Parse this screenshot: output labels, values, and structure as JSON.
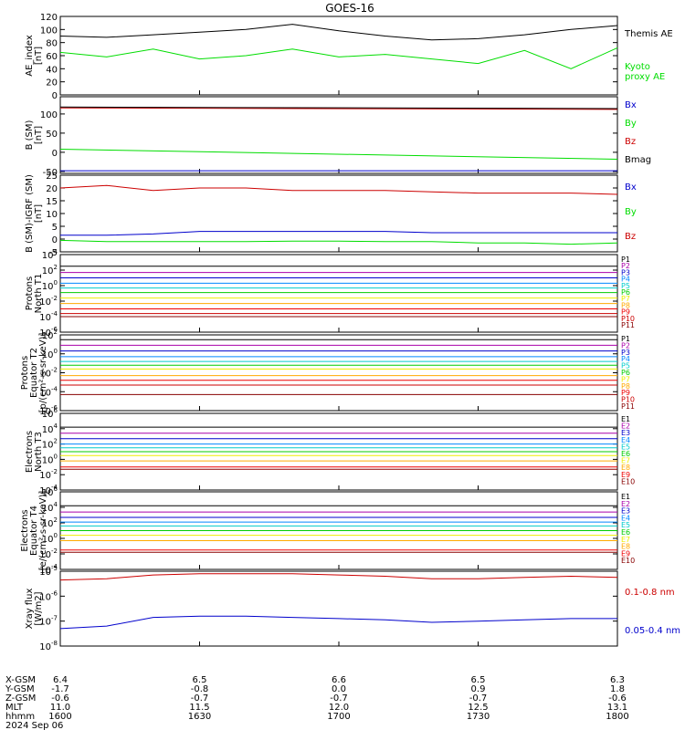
{
  "title": "GOES-16",
  "chart_data": [
    {
      "type": "line",
      "ylabel": [
        "AE_index",
        "[nT]"
      ],
      "ylim": [
        0,
        120
      ],
      "yticks": [
        "0",
        "20",
        "40",
        "60",
        "80",
        "100",
        "120"
      ],
      "x": [
        0,
        10,
        20,
        30,
        40,
        50,
        60,
        70,
        80,
        90,
        100,
        110,
        120
      ],
      "series": [
        {
          "name": "Themis AE",
          "color": "#000000",
          "values": [
            90,
            88,
            92,
            96,
            100,
            108,
            98,
            90,
            84,
            86,
            92,
            100,
            106
          ]
        },
        {
          "name": "Kyoto proxy AE",
          "color": "#00dd00",
          "values": [
            65,
            58,
            70,
            55,
            60,
            70,
            58,
            62,
            55,
            48,
            68,
            40,
            72
          ]
        }
      ]
    },
    {
      "type": "line",
      "ylabel": [
        "B (SM)",
        "[nT]"
      ],
      "ylim": [
        -55,
        145
      ],
      "yticks": [
        "-50",
        "0",
        "50",
        "100"
      ],
      "x": [
        0,
        120
      ],
      "series": [
        {
          "name": "Bx",
          "color": "#0000cc",
          "values": [
            -48,
            -48
          ]
        },
        {
          "name": "By",
          "color": "#00dd00",
          "values": [
            8,
            -18
          ]
        },
        {
          "name": "Bz",
          "color": "#cc0000",
          "values": [
            116,
            112
          ]
        },
        {
          "name": "Bmag",
          "color": "#000000",
          "values": [
            118,
            114
          ]
        }
      ]
    },
    {
      "type": "line",
      "ylabel": [
        "B (SM)-IGRF (SM)",
        "[nT]"
      ],
      "ylim": [
        -5,
        25
      ],
      "yticks": [
        "-5",
        "0",
        "5",
        "10",
        "15",
        "20",
        "25"
      ],
      "x": [
        0,
        10,
        20,
        30,
        40,
        50,
        60,
        70,
        80,
        90,
        100,
        110,
        120
      ],
      "series": [
        {
          "name": "Bx",
          "color": "#0000cc",
          "values": [
            1.5,
            1.5,
            2,
            3,
            3,
            3,
            3,
            3,
            2.5,
            2.5,
            2.5,
            2.5,
            2.5
          ]
        },
        {
          "name": "By",
          "color": "#00dd00",
          "values": [
            -0.5,
            -1,
            -1,
            -1,
            -1,
            -0.8,
            -0.8,
            -1,
            -1,
            -1.5,
            -1.5,
            -2,
            -1.5
          ]
        },
        {
          "name": "Bz",
          "color": "#cc0000",
          "values": [
            20,
            21,
            19,
            20,
            20,
            19,
            19,
            19,
            18.5,
            18,
            18,
            18,
            17.5
          ]
        }
      ]
    },
    {
      "type": "line",
      "log": true,
      "ylabel": [
        "Protons",
        "North T1"
      ],
      "ylim": [
        -6,
        4
      ],
      "yticks": [
        "10^4",
        "10^2",
        "10^0",
        "10^-2",
        "10^-4",
        "10^-6"
      ],
      "x": [
        0,
        120
      ],
      "series": [
        {
          "name": "P1",
          "color": "#000000",
          "values": [
            2.5,
            2.5
          ]
        },
        {
          "name": "P2",
          "color": "#aa00aa",
          "values": [
            1.7,
            1.7
          ]
        },
        {
          "name": "P3",
          "color": "#0000cc",
          "values": [
            1.0,
            1.0
          ]
        },
        {
          "name": "P4",
          "color": "#0088ff",
          "values": [
            0.3,
            0.3
          ]
        },
        {
          "name": "P5",
          "color": "#00cccc",
          "values": [
            -0.3,
            -0.3
          ]
        },
        {
          "name": "P6",
          "color": "#00cc00",
          "values": [
            -0.9,
            -0.9
          ]
        },
        {
          "name": "P7",
          "color": "#eeee00",
          "values": [
            -1.6,
            -1.6
          ]
        },
        {
          "name": "P8",
          "color": "#ffaa00",
          "values": [
            -2.3,
            -2.3
          ]
        },
        {
          "name": "P9",
          "color": "#ee0000",
          "values": [
            -3.0,
            -3.0
          ]
        },
        {
          "name": "P10",
          "color": "#cc0000",
          "values": [
            -3.6,
            -3.6
          ]
        },
        {
          "name": "P11",
          "color": "#880000",
          "values": [
            -4.0,
            -4.0
          ]
        }
      ]
    },
    {
      "type": "line",
      "log": true,
      "ylabel": [
        "Protons",
        "Equator T2",
        "[p/(cm²-s-sr-keV)]"
      ],
      "ylim": [
        -6,
        2
      ],
      "yticks": [
        "10^2",
        "10^0",
        "10^-2",
        "10^-4",
        "10^-6"
      ],
      "x": [
        0,
        120
      ],
      "series": [
        {
          "name": "P1",
          "color": "#000000",
          "values": [
            1.5,
            1.5
          ]
        },
        {
          "name": "P2",
          "color": "#aa00aa",
          "values": [
            0.9,
            0.9
          ]
        },
        {
          "name": "P3",
          "color": "#0000cc",
          "values": [
            0.3,
            0.3
          ]
        },
        {
          "name": "P4",
          "color": "#0088ff",
          "values": [
            -0.3,
            -0.3
          ]
        },
        {
          "name": "P5",
          "color": "#00cccc",
          "values": [
            -0.8,
            -0.8
          ]
        },
        {
          "name": "P6",
          "color": "#00cc00",
          "values": [
            -1.2,
            -1.2
          ]
        },
        {
          "name": "P7",
          "color": "#eeee00",
          "values": [
            -1.6,
            -1.6
          ]
        },
        {
          "name": "P8",
          "color": "#ffaa00",
          "values": [
            -2.3,
            -2.3
          ]
        },
        {
          "name": "P9",
          "color": "#ee0000",
          "values": [
            -2.8,
            -2.8
          ]
        },
        {
          "name": "P10",
          "color": "#cc0000",
          "values": [
            -3.3,
            -3.3
          ]
        },
        {
          "name": "P11",
          "color": "#880000",
          "values": [
            -4.3,
            -4.3
          ]
        }
      ]
    },
    {
      "type": "line",
      "log": true,
      "ylabel": [
        "Electrons",
        "North T3"
      ],
      "ylim": [
        -4,
        6
      ],
      "yticks": [
        "10^6",
        "10^4",
        "10^2",
        "10^0",
        "10^-2",
        "10^-4"
      ],
      "x": [
        0,
        120
      ],
      "series": [
        {
          "name": "E1",
          "color": "#000000",
          "values": [
            4.2,
            4.2
          ]
        },
        {
          "name": "E2",
          "color": "#aa00aa",
          "values": [
            3.4,
            3.4
          ]
        },
        {
          "name": "E3",
          "color": "#0000cc",
          "values": [
            2.7,
            2.7
          ]
        },
        {
          "name": "E4",
          "color": "#0088ff",
          "values": [
            2.0,
            2.0
          ]
        },
        {
          "name": "E5",
          "color": "#00cccc",
          "values": [
            1.5,
            1.5
          ]
        },
        {
          "name": "E6",
          "color": "#00cc00",
          "values": [
            1.0,
            1.0
          ]
        },
        {
          "name": "E7",
          "color": "#eeee00",
          "values": [
            0.5,
            0.5
          ]
        },
        {
          "name": "E8",
          "color": "#ffaa00",
          "values": [
            -0.2,
            -0.2
          ]
        },
        {
          "name": "E9",
          "color": "#ee0000",
          "values": [
            -1.0,
            -1.0
          ]
        },
        {
          "name": "E10",
          "color": "#880000",
          "values": [
            -1.3,
            -1.3
          ]
        }
      ]
    },
    {
      "type": "line",
      "log": true,
      "ylabel": [
        "Electrons",
        "Equator T4",
        "[e/(cm²-s-sr-keV)]"
      ],
      "ylim": [
        -4,
        6
      ],
      "yticks": [
        "10^6",
        "10^4",
        "10^2",
        "10^0",
        "10^-2",
        "10^-4"
      ],
      "x": [
        0,
        120
      ],
      "series": [
        {
          "name": "E1",
          "color": "#000000",
          "values": [
            4.2,
            4.2
          ]
        },
        {
          "name": "E2",
          "color": "#aa00aa",
          "values": [
            3.4,
            3.4
          ]
        },
        {
          "name": "E3",
          "color": "#0000cc",
          "values": [
            2.7,
            2.7
          ]
        },
        {
          "name": "E4",
          "color": "#0088ff",
          "values": [
            2.1,
            2.1
          ]
        },
        {
          "name": "E5",
          "color": "#00cccc",
          "values": [
            1.6,
            1.6
          ]
        },
        {
          "name": "E6",
          "color": "#00cc00",
          "values": [
            1.0,
            1.0
          ]
        },
        {
          "name": "E7",
          "color": "#eeee00",
          "values": [
            0.4,
            0.4
          ]
        },
        {
          "name": "E8",
          "color": "#ffaa00",
          "values": [
            -0.3,
            -0.3
          ]
        },
        {
          "name": "E9",
          "color": "#ee0000",
          "values": [
            -1.5,
            -1.5
          ]
        },
        {
          "name": "E10",
          "color": "#880000",
          "values": [
            -1.8,
            -1.8
          ]
        }
      ]
    },
    {
      "type": "line",
      "log": true,
      "ylabel": [
        "Xray flux",
        "[W/m2]"
      ],
      "ylim": [
        -8,
        -5
      ],
      "yticks": [
        "10^-5",
        "10^-6",
        "10^-7",
        "10^-8"
      ],
      "x": [
        0,
        10,
        20,
        30,
        40,
        50,
        60,
        70,
        80,
        90,
        100,
        110,
        120
      ],
      "series": [
        {
          "name": "0.1-0.8 nm",
          "color": "#cc0000",
          "values": [
            -5.35,
            -5.3,
            -5.15,
            -5.1,
            -5.1,
            -5.1,
            -5.15,
            -5.2,
            -5.3,
            -5.3,
            -5.25,
            -5.2,
            -5.25
          ]
        },
        {
          "name": "0.05-0.4 nm",
          "color": "#0000cc",
          "values": [
            -7.3,
            -7.2,
            -6.85,
            -6.8,
            -6.8,
            -6.85,
            -6.9,
            -6.95,
            -7.05,
            -7.0,
            -6.95,
            -6.9,
            -6.9
          ]
        }
      ]
    }
  ],
  "ephemeris": {
    "labels": [
      "X-GSM",
      "Y-GSM",
      "Z-GSM",
      "MLT",
      "hhmm",
      "2024 Sep 06"
    ],
    "columns": [
      [
        "6.4",
        "-1.7",
        "-0.6",
        "11.0",
        "1600"
      ],
      [
        "6.5",
        "-0.8",
        "-0.7",
        "11.5",
        "1630"
      ],
      [
        "6.6",
        "0.0",
        "-0.7",
        "12.0",
        "1700"
      ],
      [
        "6.5",
        "0.9",
        "-0.7",
        "12.5",
        "1730"
      ],
      [
        "6.3",
        "1.8",
        "-0.6",
        "13.1",
        "1800"
      ]
    ]
  }
}
